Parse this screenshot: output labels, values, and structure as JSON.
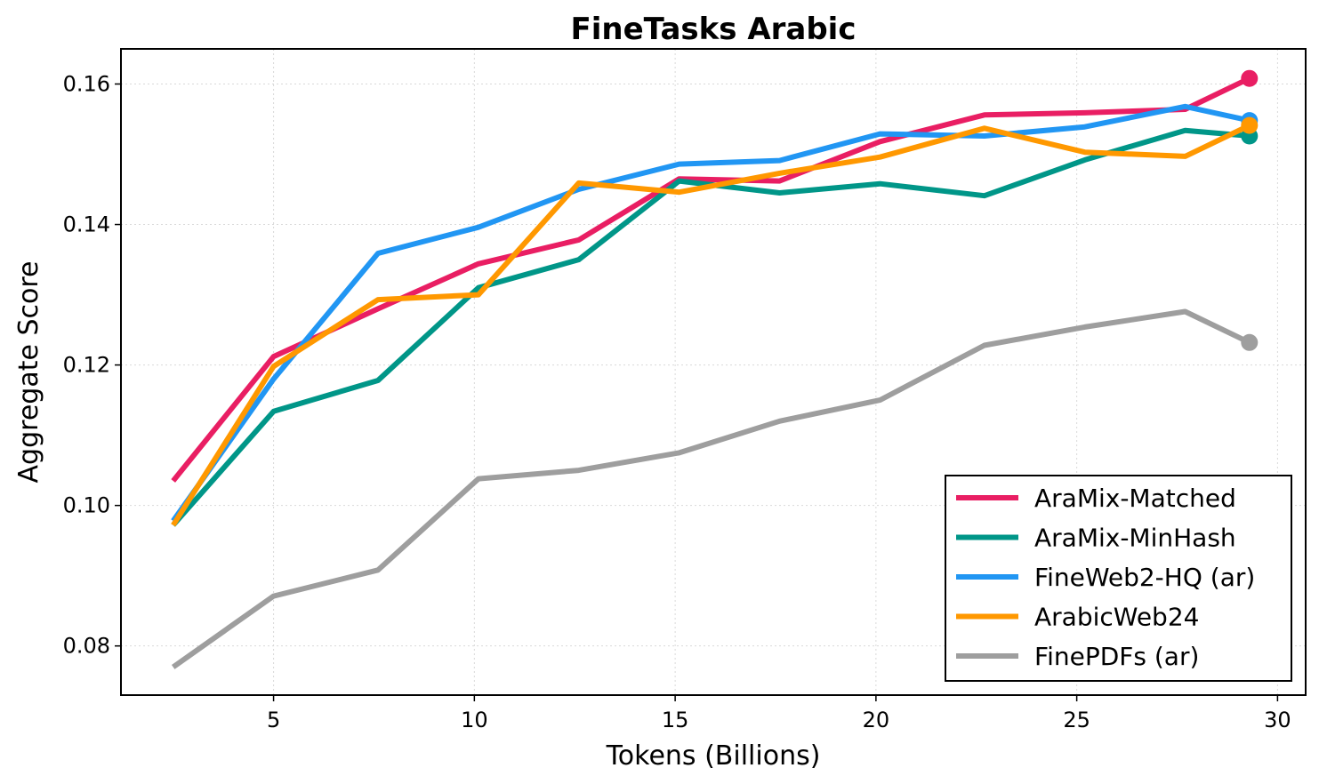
{
  "chart_data": {
    "type": "line",
    "title": "FineTasks Arabic",
    "xlabel": "Tokens (Billions)",
    "ylabel": "Aggregate Score",
    "xlim": [
      1.2,
      30.7
    ],
    "ylim": [
      0.073,
      0.165
    ],
    "xticks": [
      5,
      10,
      15,
      20,
      25,
      30
    ],
    "xtick_labels": [
      "5",
      "10",
      "15",
      "20",
      "25",
      "30"
    ],
    "yticks": [
      0.08,
      0.1,
      0.12,
      0.14,
      0.16
    ],
    "ytick_labels": [
      "0.08",
      "0.10",
      "0.12",
      "0.14",
      "0.16"
    ],
    "grid": true,
    "legend_position": "lower-right",
    "x": [
      2.5,
      5.0,
      7.6,
      10.1,
      12.6,
      15.1,
      17.6,
      20.1,
      22.7,
      25.2,
      27.7,
      29.3
    ],
    "series": [
      {
        "name": "AraMix-Matched",
        "color": "#E91E63",
        "values": [
          0.1035,
          0.1212,
          0.128,
          0.1344,
          0.1378,
          0.1465,
          0.1462,
          0.1518,
          0.1556,
          0.1559,
          0.1564,
          0.1608
        ]
      },
      {
        "name": "AraMix-MinHash",
        "color": "#009688",
        "values": [
          0.0972,
          0.1134,
          0.1178,
          0.131,
          0.135,
          0.1462,
          0.1445,
          0.1458,
          0.1441,
          0.1492,
          0.1534,
          0.1526
        ]
      },
      {
        "name": "FineWeb2-HQ (ar)",
        "color": "#2196F3",
        "values": [
          0.0978,
          0.118,
          0.1359,
          0.1396,
          0.145,
          0.1486,
          0.1491,
          0.1529,
          0.1526,
          0.1539,
          0.1568,
          0.1548
        ]
      },
      {
        "name": "ArabicWeb24",
        "color": "#FF9800",
        "values": [
          0.0972,
          0.1198,
          0.1293,
          0.13,
          0.1459,
          0.1446,
          0.1473,
          0.1496,
          0.1537,
          0.1503,
          0.1497,
          0.1541
        ]
      },
      {
        "name": "FinePDFs (ar)",
        "color": "#9E9E9E",
        "values": [
          0.077,
          0.0871,
          0.0908,
          0.1038,
          0.105,
          0.1075,
          0.112,
          0.115,
          0.1228,
          0.1254,
          0.1276,
          0.1232
        ]
      }
    ]
  }
}
